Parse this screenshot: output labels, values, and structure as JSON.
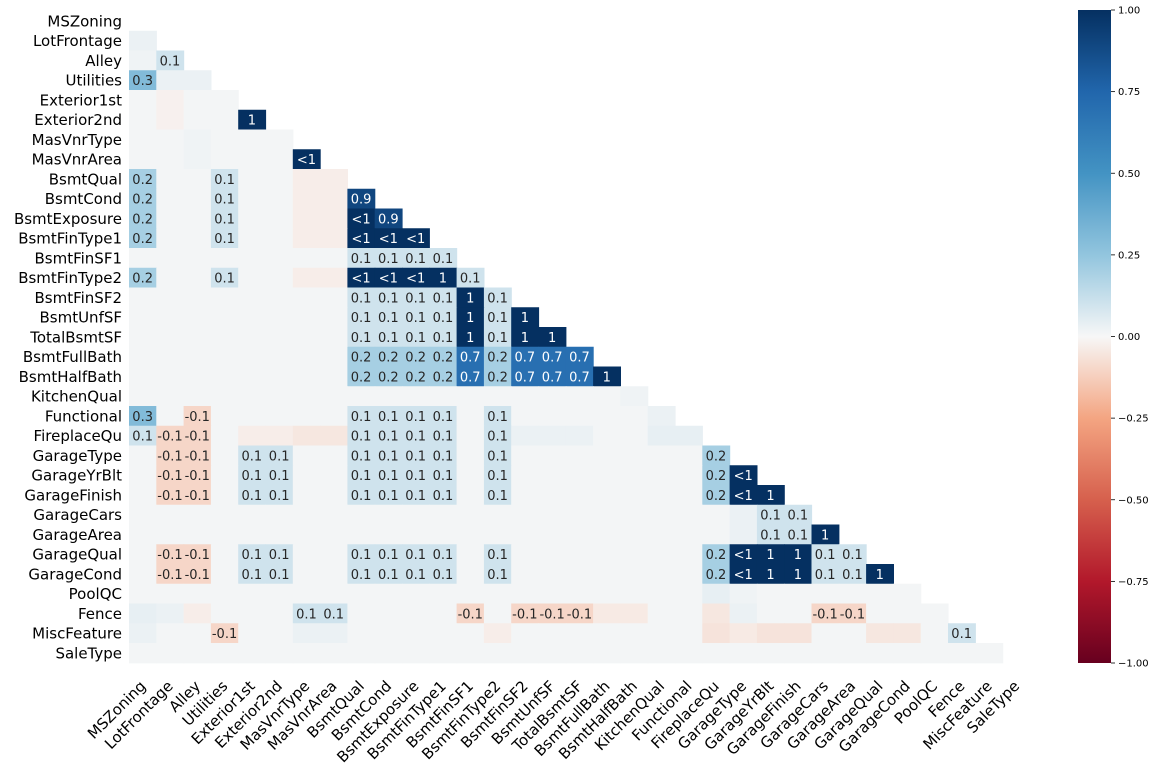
{
  "chart_data": {
    "type": "heatmap",
    "title": "",
    "variables": [
      "MSZoning",
      "LotFrontage",
      "Alley",
      "Utilities",
      "Exterior1st",
      "Exterior2nd",
      "MasVnrType",
      "MasVnrArea",
      "BsmtQual",
      "BsmtCond",
      "BsmtExposure",
      "BsmtFinType1",
      "BsmtFinSF1",
      "BsmtFinType2",
      "BsmtFinSF2",
      "BsmtUnfSF",
      "TotalBsmtSF",
      "BsmtFullBath",
      "BsmtHalfBath",
      "KitchenQual",
      "Functional",
      "FireplaceQu",
      "GarageType",
      "GarageYrBlt",
      "GarageFinish",
      "GarageCars",
      "GarageArea",
      "GarageQual",
      "GarageCond",
      "PoolQC",
      "Fence",
      "MiscFeature",
      "SaleType"
    ],
    "cells": [
      {
        "r": 2,
        "c": 1,
        "v": 0.1,
        "label": "0.1"
      },
      {
        "r": 3,
        "c": 0,
        "v": 0.3,
        "label": "0.3"
      },
      {
        "r": 5,
        "c": 4,
        "v": 1,
        "label": "1"
      },
      {
        "r": 7,
        "c": 6,
        "v": 1,
        "label": "<1"
      },
      {
        "r": 8,
        "c": 0,
        "v": 0.2,
        "label": "0.2"
      },
      {
        "r": 8,
        "c": 3,
        "v": 0.1,
        "label": "0.1"
      },
      {
        "r": 9,
        "c": 0,
        "v": 0.2,
        "label": "0.2"
      },
      {
        "r": 9,
        "c": 3,
        "v": 0.1,
        "label": "0.1"
      },
      {
        "r": 9,
        "c": 8,
        "v": 0.9,
        "label": "0.9"
      },
      {
        "r": 10,
        "c": 0,
        "v": 0.2,
        "label": "0.2"
      },
      {
        "r": 10,
        "c": 3,
        "v": 0.1,
        "label": "0.1"
      },
      {
        "r": 10,
        "c": 8,
        "v": 1,
        "label": "<1"
      },
      {
        "r": 10,
        "c": 9,
        "v": 0.9,
        "label": "0.9"
      },
      {
        "r": 11,
        "c": 0,
        "v": 0.2,
        "label": "0.2"
      },
      {
        "r": 11,
        "c": 3,
        "v": 0.1,
        "label": "0.1"
      },
      {
        "r": 11,
        "c": 8,
        "v": 1,
        "label": "<1"
      },
      {
        "r": 11,
        "c": 9,
        "v": 1,
        "label": "<1"
      },
      {
        "r": 11,
        "c": 10,
        "v": 1,
        "label": "<1"
      },
      {
        "r": 12,
        "c": 8,
        "v": 0.1,
        "label": "0.1"
      },
      {
        "r": 12,
        "c": 9,
        "v": 0.1,
        "label": "0.1"
      },
      {
        "r": 12,
        "c": 10,
        "v": 0.1,
        "label": "0.1"
      },
      {
        "r": 12,
        "c": 11,
        "v": 0.1,
        "label": "0.1"
      },
      {
        "r": 13,
        "c": 0,
        "v": 0.2,
        "label": "0.2"
      },
      {
        "r": 13,
        "c": 3,
        "v": 0.1,
        "label": "0.1"
      },
      {
        "r": 13,
        "c": 8,
        "v": 1,
        "label": "<1"
      },
      {
        "r": 13,
        "c": 9,
        "v": 1,
        "label": "<1"
      },
      {
        "r": 13,
        "c": 10,
        "v": 1,
        "label": "<1"
      },
      {
        "r": 13,
        "c": 11,
        "v": 1,
        "label": "1"
      },
      {
        "r": 13,
        "c": 12,
        "v": 0.1,
        "label": "0.1"
      },
      {
        "r": 14,
        "c": 8,
        "v": 0.1,
        "label": "0.1"
      },
      {
        "r": 14,
        "c": 9,
        "v": 0.1,
        "label": "0.1"
      },
      {
        "r": 14,
        "c": 10,
        "v": 0.1,
        "label": "0.1"
      },
      {
        "r": 14,
        "c": 11,
        "v": 0.1,
        "label": "0.1"
      },
      {
        "r": 14,
        "c": 12,
        "v": 1,
        "label": "1"
      },
      {
        "r": 14,
        "c": 13,
        "v": 0.1,
        "label": "0.1"
      },
      {
        "r": 15,
        "c": 8,
        "v": 0.1,
        "label": "0.1"
      },
      {
        "r": 15,
        "c": 9,
        "v": 0.1,
        "label": "0.1"
      },
      {
        "r": 15,
        "c": 10,
        "v": 0.1,
        "label": "0.1"
      },
      {
        "r": 15,
        "c": 11,
        "v": 0.1,
        "label": "0.1"
      },
      {
        "r": 15,
        "c": 12,
        "v": 1,
        "label": "1"
      },
      {
        "r": 15,
        "c": 13,
        "v": 0.1,
        "label": "0.1"
      },
      {
        "r": 15,
        "c": 14,
        "v": 1,
        "label": "1"
      },
      {
        "r": 16,
        "c": 8,
        "v": 0.1,
        "label": "0.1"
      },
      {
        "r": 16,
        "c": 9,
        "v": 0.1,
        "label": "0.1"
      },
      {
        "r": 16,
        "c": 10,
        "v": 0.1,
        "label": "0.1"
      },
      {
        "r": 16,
        "c": 11,
        "v": 0.1,
        "label": "0.1"
      },
      {
        "r": 16,
        "c": 12,
        "v": 1,
        "label": "1"
      },
      {
        "r": 16,
        "c": 13,
        "v": 0.1,
        "label": "0.1"
      },
      {
        "r": 16,
        "c": 14,
        "v": 1,
        "label": "1"
      },
      {
        "r": 16,
        "c": 15,
        "v": 1,
        "label": "1"
      },
      {
        "r": 17,
        "c": 8,
        "v": 0.2,
        "label": "0.2"
      },
      {
        "r": 17,
        "c": 9,
        "v": 0.2,
        "label": "0.2"
      },
      {
        "r": 17,
        "c": 10,
        "v": 0.2,
        "label": "0.2"
      },
      {
        "r": 17,
        "c": 11,
        "v": 0.2,
        "label": "0.2"
      },
      {
        "r": 17,
        "c": 12,
        "v": 0.7,
        "label": "0.7"
      },
      {
        "r": 17,
        "c": 13,
        "v": 0.2,
        "label": "0.2"
      },
      {
        "r": 17,
        "c": 14,
        "v": 0.7,
        "label": "0.7"
      },
      {
        "r": 17,
        "c": 15,
        "v": 0.7,
        "label": "0.7"
      },
      {
        "r": 17,
        "c": 16,
        "v": 0.7,
        "label": "0.7"
      },
      {
        "r": 18,
        "c": 8,
        "v": 0.2,
        "label": "0.2"
      },
      {
        "r": 18,
        "c": 9,
        "v": 0.2,
        "label": "0.2"
      },
      {
        "r": 18,
        "c": 10,
        "v": 0.2,
        "label": "0.2"
      },
      {
        "r": 18,
        "c": 11,
        "v": 0.2,
        "label": "0.2"
      },
      {
        "r": 18,
        "c": 12,
        "v": 0.7,
        "label": "0.7"
      },
      {
        "r": 18,
        "c": 13,
        "v": 0.2,
        "label": "0.2"
      },
      {
        "r": 18,
        "c": 14,
        "v": 0.7,
        "label": "0.7"
      },
      {
        "r": 18,
        "c": 15,
        "v": 0.7,
        "label": "0.7"
      },
      {
        "r": 18,
        "c": 16,
        "v": 0.7,
        "label": "0.7"
      },
      {
        "r": 18,
        "c": 17,
        "v": 1,
        "label": "1"
      },
      {
        "r": 20,
        "c": 0,
        "v": 0.3,
        "label": "0.3"
      },
      {
        "r": 20,
        "c": 2,
        "v": -0.1,
        "label": "-0.1"
      },
      {
        "r": 20,
        "c": 8,
        "v": 0.1,
        "label": "0.1"
      },
      {
        "r": 20,
        "c": 9,
        "v": 0.1,
        "label": "0.1"
      },
      {
        "r": 20,
        "c": 10,
        "v": 0.1,
        "label": "0.1"
      },
      {
        "r": 20,
        "c": 11,
        "v": 0.1,
        "label": "0.1"
      },
      {
        "r": 20,
        "c": 13,
        "v": 0.1,
        "label": "0.1"
      },
      {
        "r": 21,
        "c": 0,
        "v": 0.1,
        "label": "0.1"
      },
      {
        "r": 21,
        "c": 1,
        "v": -0.1,
        "label": "-0.1"
      },
      {
        "r": 21,
        "c": 2,
        "v": -0.1,
        "label": "-0.1"
      },
      {
        "r": 21,
        "c": 8,
        "v": 0.1,
        "label": "0.1"
      },
      {
        "r": 21,
        "c": 9,
        "v": 0.1,
        "label": "0.1"
      },
      {
        "r": 21,
        "c": 10,
        "v": 0.1,
        "label": "0.1"
      },
      {
        "r": 21,
        "c": 11,
        "v": 0.1,
        "label": "0.1"
      },
      {
        "r": 21,
        "c": 13,
        "v": 0.1,
        "label": "0.1"
      },
      {
        "r": 22,
        "c": 1,
        "v": -0.1,
        "label": "-0.1"
      },
      {
        "r": 22,
        "c": 2,
        "v": -0.1,
        "label": "-0.1"
      },
      {
        "r": 22,
        "c": 4,
        "v": 0.1,
        "label": "0.1"
      },
      {
        "r": 22,
        "c": 5,
        "v": 0.1,
        "label": "0.1"
      },
      {
        "r": 22,
        "c": 8,
        "v": 0.1,
        "label": "0.1"
      },
      {
        "r": 22,
        "c": 9,
        "v": 0.1,
        "label": "0.1"
      },
      {
        "r": 22,
        "c": 10,
        "v": 0.1,
        "label": "0.1"
      },
      {
        "r": 22,
        "c": 11,
        "v": 0.1,
        "label": "0.1"
      },
      {
        "r": 22,
        "c": 13,
        "v": 0.1,
        "label": "0.1"
      },
      {
        "r": 22,
        "c": 21,
        "v": 0.2,
        "label": "0.2"
      },
      {
        "r": 23,
        "c": 1,
        "v": -0.1,
        "label": "-0.1"
      },
      {
        "r": 23,
        "c": 2,
        "v": -0.1,
        "label": "-0.1"
      },
      {
        "r": 23,
        "c": 4,
        "v": 0.1,
        "label": "0.1"
      },
      {
        "r": 23,
        "c": 5,
        "v": 0.1,
        "label": "0.1"
      },
      {
        "r": 23,
        "c": 8,
        "v": 0.1,
        "label": "0.1"
      },
      {
        "r": 23,
        "c": 9,
        "v": 0.1,
        "label": "0.1"
      },
      {
        "r": 23,
        "c": 10,
        "v": 0.1,
        "label": "0.1"
      },
      {
        "r": 23,
        "c": 11,
        "v": 0.1,
        "label": "0.1"
      },
      {
        "r": 23,
        "c": 13,
        "v": 0.1,
        "label": "0.1"
      },
      {
        "r": 23,
        "c": 21,
        "v": 0.2,
        "label": "0.2"
      },
      {
        "r": 23,
        "c": 22,
        "v": 1,
        "label": "<1"
      },
      {
        "r": 24,
        "c": 1,
        "v": -0.1,
        "label": "-0.1"
      },
      {
        "r": 24,
        "c": 2,
        "v": -0.1,
        "label": "-0.1"
      },
      {
        "r": 24,
        "c": 4,
        "v": 0.1,
        "label": "0.1"
      },
      {
        "r": 24,
        "c": 5,
        "v": 0.1,
        "label": "0.1"
      },
      {
        "r": 24,
        "c": 8,
        "v": 0.1,
        "label": "0.1"
      },
      {
        "r": 24,
        "c": 9,
        "v": 0.1,
        "label": "0.1"
      },
      {
        "r": 24,
        "c": 10,
        "v": 0.1,
        "label": "0.1"
      },
      {
        "r": 24,
        "c": 11,
        "v": 0.1,
        "label": "0.1"
      },
      {
        "r": 24,
        "c": 13,
        "v": 0.1,
        "label": "0.1"
      },
      {
        "r": 24,
        "c": 21,
        "v": 0.2,
        "label": "0.2"
      },
      {
        "r": 24,
        "c": 22,
        "v": 1,
        "label": "<1"
      },
      {
        "r": 24,
        "c": 23,
        "v": 1,
        "label": "1"
      },
      {
        "r": 25,
        "c": 23,
        "v": 0.1,
        "label": "0.1"
      },
      {
        "r": 25,
        "c": 24,
        "v": 0.1,
        "label": "0.1"
      },
      {
        "r": 26,
        "c": 23,
        "v": 0.1,
        "label": "0.1"
      },
      {
        "r": 26,
        "c": 24,
        "v": 0.1,
        "label": "0.1"
      },
      {
        "r": 26,
        "c": 25,
        "v": 1,
        "label": "1"
      },
      {
        "r": 27,
        "c": 1,
        "v": -0.1,
        "label": "-0.1"
      },
      {
        "r": 27,
        "c": 2,
        "v": -0.1,
        "label": "-0.1"
      },
      {
        "r": 27,
        "c": 4,
        "v": 0.1,
        "label": "0.1"
      },
      {
        "r": 27,
        "c": 5,
        "v": 0.1,
        "label": "0.1"
      },
      {
        "r": 27,
        "c": 8,
        "v": 0.1,
        "label": "0.1"
      },
      {
        "r": 27,
        "c": 9,
        "v": 0.1,
        "label": "0.1"
      },
      {
        "r": 27,
        "c": 10,
        "v": 0.1,
        "label": "0.1"
      },
      {
        "r": 27,
        "c": 11,
        "v": 0.1,
        "label": "0.1"
      },
      {
        "r": 27,
        "c": 13,
        "v": 0.1,
        "label": "0.1"
      },
      {
        "r": 27,
        "c": 21,
        "v": 0.2,
        "label": "0.2"
      },
      {
        "r": 27,
        "c": 22,
        "v": 1,
        "label": "<1"
      },
      {
        "r": 27,
        "c": 23,
        "v": 1,
        "label": "1"
      },
      {
        "r": 27,
        "c": 24,
        "v": 1,
        "label": "1"
      },
      {
        "r": 27,
        "c": 25,
        "v": 0.1,
        "label": "0.1"
      },
      {
        "r": 27,
        "c": 26,
        "v": 0.1,
        "label": "0.1"
      },
      {
        "r": 28,
        "c": 1,
        "v": -0.1,
        "label": "-0.1"
      },
      {
        "r": 28,
        "c": 2,
        "v": -0.1,
        "label": "-0.1"
      },
      {
        "r": 28,
        "c": 4,
        "v": 0.1,
        "label": "0.1"
      },
      {
        "r": 28,
        "c": 5,
        "v": 0.1,
        "label": "0.1"
      },
      {
        "r": 28,
        "c": 8,
        "v": 0.1,
        "label": "0.1"
      },
      {
        "r": 28,
        "c": 9,
        "v": 0.1,
        "label": "0.1"
      },
      {
        "r": 28,
        "c": 10,
        "v": 0.1,
        "label": "0.1"
      },
      {
        "r": 28,
        "c": 11,
        "v": 0.1,
        "label": "0.1"
      },
      {
        "r": 28,
        "c": 13,
        "v": 0.1,
        "label": "0.1"
      },
      {
        "r": 28,
        "c": 21,
        "v": 0.2,
        "label": "0.2"
      },
      {
        "r": 28,
        "c": 22,
        "v": 1,
        "label": "<1"
      },
      {
        "r": 28,
        "c": 23,
        "v": 1,
        "label": "1"
      },
      {
        "r": 28,
        "c": 24,
        "v": 1,
        "label": "1"
      },
      {
        "r": 28,
        "c": 25,
        "v": 0.1,
        "label": "0.1"
      },
      {
        "r": 28,
        "c": 26,
        "v": 0.1,
        "label": "0.1"
      },
      {
        "r": 28,
        "c": 27,
        "v": 1,
        "label": "1"
      },
      {
        "r": 30,
        "c": 6,
        "v": 0.1,
        "label": "0.1"
      },
      {
        "r": 30,
        "c": 7,
        "v": 0.1,
        "label": "0.1"
      },
      {
        "r": 30,
        "c": 12,
        "v": -0.1,
        "label": "-0.1"
      },
      {
        "r": 30,
        "c": 14,
        "v": -0.1,
        "label": "-0.1"
      },
      {
        "r": 30,
        "c": 15,
        "v": -0.1,
        "label": "-0.1"
      },
      {
        "r": 30,
        "c": 16,
        "v": -0.1,
        "label": "-0.1"
      },
      {
        "r": 30,
        "c": 25,
        "v": -0.1,
        "label": "-0.1"
      },
      {
        "r": 30,
        "c": 26,
        "v": -0.1,
        "label": "-0.1"
      },
      {
        "r": 31,
        "c": 3,
        "v": -0.1,
        "label": "-0.1"
      },
      {
        "r": 31,
        "c": 30,
        "v": 0.1,
        "label": "0.1"
      }
    ],
    "faint_cells": [
      {
        "r": 1,
        "c": 0,
        "v": 0.03
      },
      {
        "r": 2,
        "c": 0,
        "v": 0.02
      },
      {
        "r": 3,
        "c": 1,
        "v": 0.03
      },
      {
        "r": 3,
        "c": 2,
        "v": 0.03
      },
      {
        "r": 4,
        "c": 1,
        "v": -0.02
      },
      {
        "r": 5,
        "c": 1,
        "v": -0.02
      },
      {
        "r": 6,
        "c": 2,
        "v": 0.02
      },
      {
        "r": 7,
        "c": 2,
        "v": 0.02
      },
      {
        "r": 8,
        "c": 6,
        "v": -0.03
      },
      {
        "r": 8,
        "c": 7,
        "v": -0.03
      },
      {
        "r": 9,
        "c": 6,
        "v": -0.03
      },
      {
        "r": 9,
        "c": 7,
        "v": -0.03
      },
      {
        "r": 10,
        "c": 6,
        "v": -0.03
      },
      {
        "r": 10,
        "c": 7,
        "v": -0.03
      },
      {
        "r": 11,
        "c": 6,
        "v": -0.03
      },
      {
        "r": 11,
        "c": 7,
        "v": -0.03
      },
      {
        "r": 13,
        "c": 6,
        "v": -0.03
      },
      {
        "r": 13,
        "c": 7,
        "v": -0.03
      },
      {
        "r": 19,
        "c": 18,
        "v": 0.02
      },
      {
        "r": 20,
        "c": 19,
        "v": 0.03
      },
      {
        "r": 21,
        "c": 4,
        "v": -0.03
      },
      {
        "r": 21,
        "c": 5,
        "v": -0.03
      },
      {
        "r": 21,
        "c": 6,
        "v": -0.05
      },
      {
        "r": 21,
        "c": 7,
        "v": -0.05
      },
      {
        "r": 21,
        "c": 14,
        "v": 0.03
      },
      {
        "r": 21,
        "c": 15,
        "v": 0.03
      },
      {
        "r": 21,
        "c": 16,
        "v": 0.03
      },
      {
        "r": 21,
        "c": 19,
        "v": 0.04
      },
      {
        "r": 21,
        "c": 20,
        "v": 0.04
      },
      {
        "r": 25,
        "c": 22,
        "v": 0.03
      },
      {
        "r": 26,
        "c": 22,
        "v": 0.03
      },
      {
        "r": 29,
        "c": 21,
        "v": 0.04
      },
      {
        "r": 29,
        "c": 22,
        "v": 0.02
      },
      {
        "r": 30,
        "c": 0,
        "v": 0.04
      },
      {
        "r": 30,
        "c": 1,
        "v": 0.03
      },
      {
        "r": 30,
        "c": 2,
        "v": -0.03
      },
      {
        "r": 30,
        "c": 17,
        "v": -0.04
      },
      {
        "r": 30,
        "c": 18,
        "v": -0.04
      },
      {
        "r": 30,
        "c": 21,
        "v": -0.05
      },
      {
        "r": 30,
        "c": 22,
        "v": 0.03
      },
      {
        "r": 31,
        "c": 0,
        "v": 0.03
      },
      {
        "r": 31,
        "c": 6,
        "v": 0.03
      },
      {
        "r": 31,
        "c": 7,
        "v": 0.03
      },
      {
        "r": 31,
        "c": 13,
        "v": -0.03
      },
      {
        "r": 31,
        "c": 21,
        "v": -0.06
      },
      {
        "r": 31,
        "c": 22,
        "v": -0.04
      },
      {
        "r": 31,
        "c": 23,
        "v": -0.06
      },
      {
        "r": 31,
        "c": 24,
        "v": -0.06
      },
      {
        "r": 31,
        "c": 27,
        "v": -0.05
      },
      {
        "r": 31,
        "c": 28,
        "v": -0.05
      }
    ],
    "vmin": -1,
    "vmax": 1,
    "colormap": "RdBu",
    "colorbar_ticks": [
      -1,
      -0.75,
      -0.5,
      -0.25,
      0,
      0.25,
      0.5,
      0.75,
      1
    ],
    "colorbar_tick_labels": [
      "−1.00",
      "−0.75",
      "−0.50",
      "−0.25",
      "0.00",
      "0.25",
      "0.50",
      "0.75",
      "1.00"
    ],
    "mask": "upper-triangle-and-diagonal",
    "legend_position": "right"
  }
}
